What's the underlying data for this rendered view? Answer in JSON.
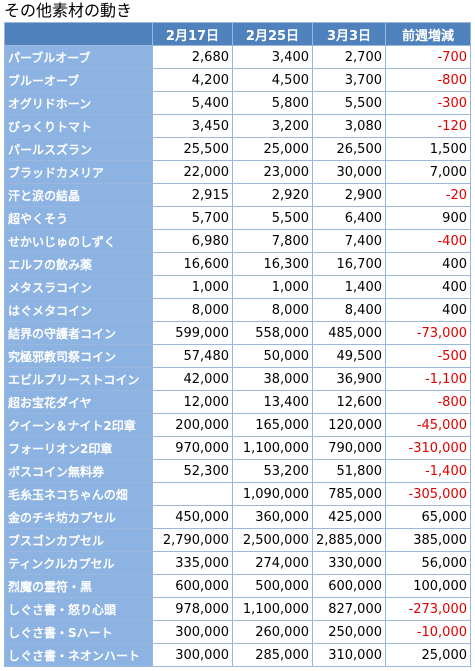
{
  "header": {
    "title": "その他素材の動き"
  },
  "table": {
    "columns": [
      "2月17日",
      "2月25日",
      "3月3日",
      "前週増減"
    ],
    "rows": [
      [
        "パーブルオーブ",
        "2,680",
        "3,400",
        "2,700",
        "-700"
      ],
      [
        "ブルーオーブ",
        "4,200",
        "4,500",
        "3,700",
        "-800"
      ],
      [
        "オグリドホーン",
        "5,400",
        "5,800",
        "5,500",
        "-300"
      ],
      [
        "びっくりトマト",
        "3,450",
        "3,200",
        "3,080",
        "-120"
      ],
      [
        "パールスズラン",
        "25,500",
        "25,000",
        "26,500",
        "1,500"
      ],
      [
        "ブラッドカメリア",
        "22,000",
        "23,000",
        "30,000",
        "7,000"
      ],
      [
        "汗と涙の結晶",
        "2,915",
        "2,920",
        "2,900",
        "-20"
      ],
      [
        "超やくそう",
        "5,700",
        "5,500",
        "6,400",
        "900"
      ],
      [
        "せかいじゅのしずく",
        "6,980",
        "7,800",
        "7,400",
        "-400"
      ],
      [
        "エルフの飲み薬",
        "16,600",
        "16,300",
        "16,700",
        "400"
      ],
      [
        "メタスラコイン",
        "1,000",
        "1,000",
        "1,400",
        "400"
      ],
      [
        "はぐメタコイン",
        "8,000",
        "8,000",
        "8,400",
        "400"
      ],
      [
        "結界の守護者コイン",
        "599,000",
        "558,000",
        "485,000",
        "-73,000"
      ],
      [
        "究極邪教司祭コイン",
        "57,480",
        "50,000",
        "49,500",
        "-500"
      ],
      [
        "エビルプリーストコイン",
        "42,000",
        "38,000",
        "36,900",
        "-1,100"
      ],
      [
        "超お宝花ダイヤ",
        "12,000",
        "13,400",
        "12,600",
        "-800"
      ],
      [
        "クイーン＆ナイト2印章",
        "200,000",
        "165,000",
        "120,000",
        "-45,000"
      ],
      [
        "フォーリオン2印章",
        "970,000",
        "1,100,000",
        "790,000",
        "-310,000"
      ],
      [
        "ボスコイン無料券",
        "52,300",
        "53,200",
        "51,800",
        "-1,400"
      ],
      [
        "毛糸玉ネコちゃんの畑",
        null,
        "1,090,000",
        "785,000",
        "-305,000"
      ],
      [
        "金のチキ坊カプセル",
        "450,000",
        "360,000",
        "425,000",
        "65,000"
      ],
      [
        "ブスゴンカプセル",
        "2,790,000",
        "2,500,000",
        "2,885,000",
        "385,000"
      ],
      [
        "ティンクルカプセル",
        "335,000",
        "274,000",
        "330,000",
        "56,000"
      ],
      [
        "烈魔の霊符・黒",
        "600,000",
        "500,000",
        "600,000",
        "100,000"
      ],
      [
        "しぐさ書・怒り心頭",
        "978,000",
        "1,100,000",
        "827,000",
        "-273,000"
      ],
      [
        "しぐさ書・Sハート",
        "300,000",
        "260,000",
        "250,000",
        "-10,000"
      ],
      [
        "しぐさ書・ネオンハート",
        "300,000",
        "285,000",
        "310,000",
        "25,000"
      ]
    ]
  }
}
